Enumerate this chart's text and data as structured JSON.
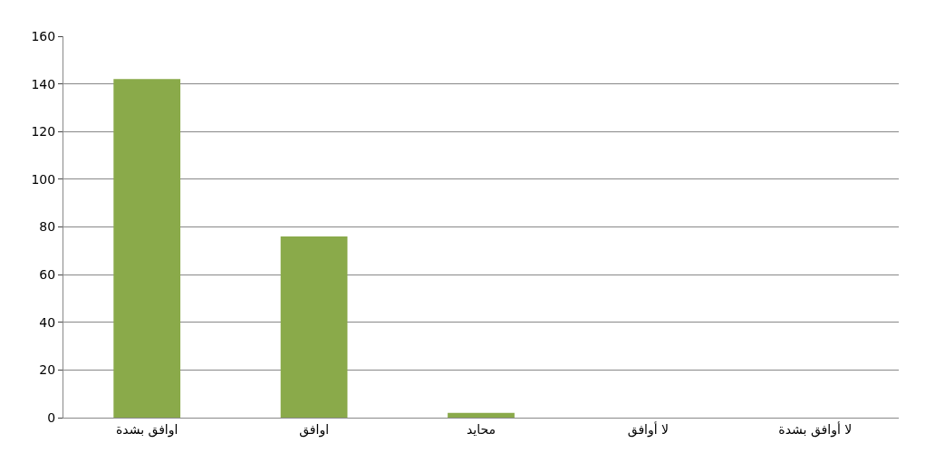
{
  "chart_data": {
    "type": "bar",
    "categories": [
      "اوافق بشدة",
      "اوافق",
      "محايد",
      "لا أوافق",
      "لا أوافق بشدة"
    ],
    "values": [
      142,
      76,
      2,
      0,
      0
    ],
    "color": "#8aaa4a",
    "ylim": [
      0,
      160
    ],
    "yticks": [
      0,
      20,
      40,
      60,
      80,
      100,
      120,
      140,
      160
    ],
    "grid": "y",
    "legend": false
  }
}
